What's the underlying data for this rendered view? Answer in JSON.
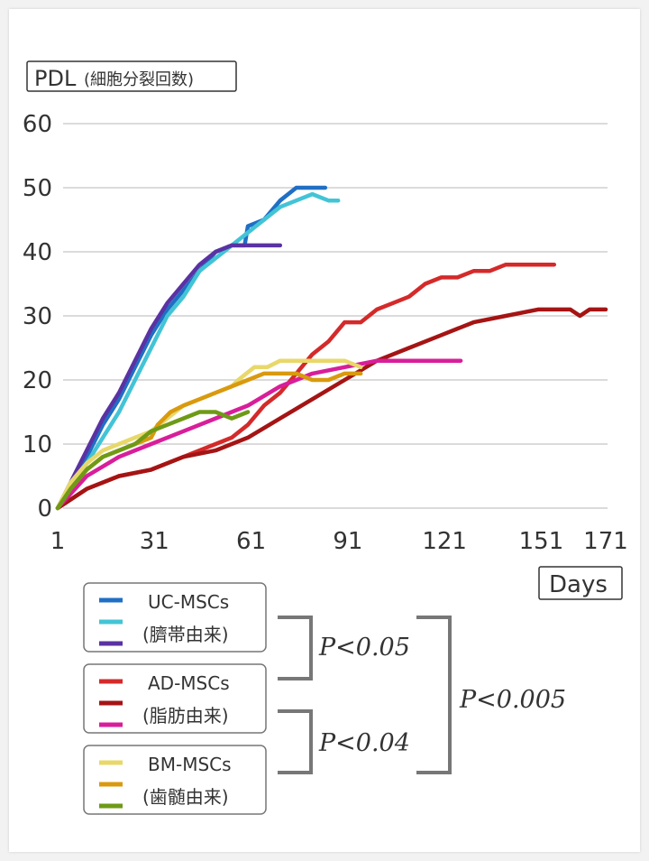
{
  "chart_data": {
    "type": "line",
    "ylabel": "PDL",
    "ylabel_note": "(細胞分裂回数)",
    "xlabel": "Days",
    "xlim": [
      1,
      171
    ],
    "ylim": [
      0,
      60
    ],
    "y_ticks": [
      "0",
      "10",
      "20",
      "30",
      "40",
      "50",
      "60"
    ],
    "x_ticks": [
      "1",
      "31",
      "61",
      "91",
      "121",
      "151",
      "171"
    ],
    "grid": true,
    "series": [
      {
        "name": "UC-MSCs 1",
        "group": "UC-MSCs",
        "color": "#1f6fc4",
        "points": [
          [
            1,
            0
          ],
          [
            5,
            3
          ],
          [
            10,
            8
          ],
          [
            15,
            13
          ],
          [
            20,
            17
          ],
          [
            25,
            22
          ],
          [
            30,
            27
          ],
          [
            35,
            31
          ],
          [
            40,
            34
          ],
          [
            45,
            37
          ],
          [
            50,
            40
          ],
          [
            55,
            41
          ],
          [
            59,
            41
          ],
          [
            60,
            44
          ],
          [
            65,
            45
          ],
          [
            70,
            48
          ],
          [
            75,
            50
          ],
          [
            80,
            50
          ],
          [
            84,
            50
          ]
        ]
      },
      {
        "name": "UC-MSCs 2",
        "group": "UC-MSCs",
        "color": "#43c4d6",
        "points": [
          [
            1,
            0
          ],
          [
            5,
            3
          ],
          [
            10,
            7
          ],
          [
            15,
            11
          ],
          [
            20,
            15
          ],
          [
            24,
            19
          ],
          [
            27,
            22
          ],
          [
            31,
            26
          ],
          [
            35,
            30
          ],
          [
            40,
            33
          ],
          [
            45,
            37
          ],
          [
            50,
            39
          ],
          [
            55,
            41
          ],
          [
            60,
            43
          ],
          [
            65,
            45
          ],
          [
            70,
            47
          ],
          [
            75,
            48
          ],
          [
            80,
            49
          ],
          [
            85,
            48
          ],
          [
            88,
            48
          ]
        ]
      },
      {
        "name": "UC-MSCs 3",
        "group": "UC-MSCs",
        "color": "#5a32a3",
        "points": [
          [
            1,
            0
          ],
          [
            5,
            4
          ],
          [
            10,
            9
          ],
          [
            15,
            14
          ],
          [
            20,
            18
          ],
          [
            25,
            23
          ],
          [
            30,
            28
          ],
          [
            35,
            32
          ],
          [
            40,
            35
          ],
          [
            45,
            38
          ],
          [
            50,
            40
          ],
          [
            55,
            41
          ],
          [
            60,
            41
          ],
          [
            65,
            41
          ],
          [
            70,
            41
          ]
        ]
      },
      {
        "name": "AD-MSCs 1",
        "group": "AD-MSCs",
        "color": "#d42a2a",
        "points": [
          [
            1,
            0
          ],
          [
            10,
            3
          ],
          [
            20,
            5
          ],
          [
            30,
            6
          ],
          [
            40,
            8
          ],
          [
            50,
            10
          ],
          [
            55,
            11
          ],
          [
            60,
            13
          ],
          [
            65,
            16
          ],
          [
            70,
            18
          ],
          [
            75,
            21
          ],
          [
            80,
            24
          ],
          [
            85,
            26
          ],
          [
            90,
            29
          ],
          [
            95,
            29
          ],
          [
            100,
            31
          ],
          [
            105,
            32
          ],
          [
            110,
            33
          ],
          [
            115,
            35
          ],
          [
            120,
            36
          ],
          [
            125,
            36
          ],
          [
            130,
            37
          ],
          [
            135,
            37
          ],
          [
            140,
            38
          ],
          [
            150,
            38
          ],
          [
            155,
            38
          ]
        ]
      },
      {
        "name": "AD-MSCs 2",
        "group": "AD-MSCs",
        "color": "#a51414",
        "points": [
          [
            1,
            0
          ],
          [
            10,
            3
          ],
          [
            20,
            5
          ],
          [
            30,
            6
          ],
          [
            40,
            8
          ],
          [
            50,
            9
          ],
          [
            60,
            11
          ],
          [
            70,
            14
          ],
          [
            80,
            17
          ],
          [
            90,
            20
          ],
          [
            100,
            23
          ],
          [
            110,
            25
          ],
          [
            120,
            27
          ],
          [
            130,
            29
          ],
          [
            140,
            30
          ],
          [
            150,
            31
          ],
          [
            155,
            31
          ],
          [
            160,
            31
          ],
          [
            163,
            30
          ],
          [
            166,
            31
          ],
          [
            171,
            31
          ]
        ]
      },
      {
        "name": "AD-MSCs 3",
        "group": "AD-MSCs",
        "color": "#d81e9a",
        "points": [
          [
            1,
            0
          ],
          [
            10,
            5
          ],
          [
            20,
            8
          ],
          [
            30,
            10
          ],
          [
            40,
            12
          ],
          [
            50,
            14
          ],
          [
            60,
            16
          ],
          [
            70,
            19
          ],
          [
            80,
            21
          ],
          [
            90,
            22
          ],
          [
            100,
            23
          ],
          [
            110,
            23
          ],
          [
            120,
            23
          ],
          [
            126,
            23
          ]
        ]
      },
      {
        "name": "BM-MSCs 1",
        "group": "BM-MSCs",
        "color": "#e8d86a",
        "points": [
          [
            1,
            0
          ],
          [
            5,
            4
          ],
          [
            10,
            7
          ],
          [
            15,
            9
          ],
          [
            20,
            10
          ],
          [
            25,
            11
          ],
          [
            30,
            12
          ],
          [
            35,
            14
          ],
          [
            40,
            16
          ],
          [
            45,
            17
          ],
          [
            50,
            18
          ],
          [
            55,
            19
          ],
          [
            57,
            20
          ],
          [
            62,
            22
          ],
          [
            66,
            22
          ],
          [
            70,
            23
          ],
          [
            75,
            23
          ],
          [
            80,
            23
          ],
          [
            85,
            23
          ],
          [
            90,
            23
          ],
          [
            95,
            22
          ]
        ]
      },
      {
        "name": "BM-MSCs 2",
        "group": "BM-MSCs",
        "color": "#d99a0f",
        "points": [
          [
            1,
            0
          ],
          [
            5,
            3
          ],
          [
            10,
            6
          ],
          [
            15,
            8
          ],
          [
            20,
            9
          ],
          [
            25,
            10
          ],
          [
            30,
            11
          ],
          [
            32,
            13
          ],
          [
            36,
            15
          ],
          [
            40,
            16
          ],
          [
            45,
            17
          ],
          [
            50,
            18
          ],
          [
            55,
            19
          ],
          [
            60,
            20
          ],
          [
            65,
            21
          ],
          [
            70,
            21
          ],
          [
            75,
            21
          ],
          [
            80,
            20
          ],
          [
            85,
            20
          ],
          [
            90,
            21
          ],
          [
            95,
            21
          ]
        ]
      },
      {
        "name": "BM-MSCs 3",
        "group": "BM-MSCs",
        "color": "#6e9a16",
        "points": [
          [
            1,
            0
          ],
          [
            5,
            3
          ],
          [
            10,
            6
          ],
          [
            15,
            8
          ],
          [
            20,
            9
          ],
          [
            25,
            10
          ],
          [
            30,
            12
          ],
          [
            35,
            13
          ],
          [
            40,
            14
          ],
          [
            45,
            15
          ],
          [
            50,
            15
          ],
          [
            55,
            14
          ],
          [
            60,
            15
          ]
        ]
      }
    ]
  },
  "legend": [
    {
      "label": "UC-MSCs",
      "sublabel": "(臍帯由来)",
      "colors": [
        "#1f6fc4",
        "#43c4d6",
        "#5a32a3"
      ]
    },
    {
      "label": "AD-MSCs",
      "sublabel": "(脂肪由来)",
      "colors": [
        "#d42a2a",
        "#a51414",
        "#d81e9a"
      ]
    },
    {
      "label": "BM-MSCs",
      "sublabel": "(歯髄由来)",
      "colors": [
        "#e8d86a",
        "#d99a0f",
        "#6e9a16"
      ]
    }
  ],
  "annotations": {
    "p1": "P<0.05",
    "p2": "P<0.04",
    "p3": "P<0.005"
  }
}
